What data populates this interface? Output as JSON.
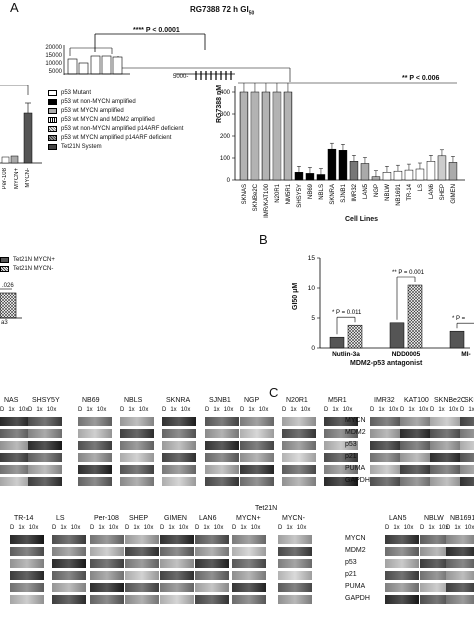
{
  "panels": {
    "a": "A",
    "b": "B",
    "c": "C"
  },
  "chart_top": {
    "title": "RG7388 72 h GI",
    "title_sub": "50",
    "pvalue": "**** P < 0.0001",
    "yticks": [
      "20000",
      "15000",
      "10000",
      "5000"
    ],
    "ylabel_frag": "5000-"
  },
  "legend": {
    "items": [
      {
        "label": "p53 Mutant",
        "swatch": "white"
      },
      {
        "label": "p53 wt non-MYCN amplified",
        "swatch": "black"
      },
      {
        "label": "p53 wt MYCN amplified",
        "swatch": "grey"
      },
      {
        "label": "p53 wt MYCN and MDM2 amplified",
        "swatch": "white"
      },
      {
        "label": "p53 wt non-MYCN amplified p14ARF deficient",
        "swatch": "white"
      },
      {
        "label": "p53 wt MYCN amplified p14ARF deficient",
        "swatch": "grey"
      },
      {
        "label": "Tet21N System",
        "swatch": "dark"
      }
    ]
  },
  "left_chart": {
    "categories": [
      "Per-108",
      "MYCN+",
      "MYCN-"
    ]
  },
  "chart_data": [
    {
      "type": "bar",
      "title": "",
      "ylabel": "RG7388 nM",
      "xlabel": "Cell Lines",
      "ylim": [
        0,
        400
      ],
      "yticks": [
        0,
        100,
        200,
        300,
        400
      ],
      "pvalue": "** P < 0.006",
      "categories": [
        "SKNAS",
        "SKNBe2C",
        "IMR/KAT100",
        "N20R1",
        "NM5R1",
        "SHSY5Y",
        "NB69",
        "NBLS",
        "SKNRA",
        "SJNB1",
        "IMR32",
        "LAN5",
        "NGP",
        "NBLW",
        "NB1691",
        "TR-14",
        "LS",
        "LAN6",
        "SHEP",
        "GIMEN"
      ],
      "values": [
        400,
        400,
        400,
        400,
        400,
        35,
        30,
        25,
        140,
        135,
        85,
        75,
        15,
        35,
        40,
        45,
        50,
        85,
        110,
        80
      ]
    },
    {
      "type": "bar",
      "title": "",
      "ylabel": "GI50 μM",
      "xlabel": "MDM2-p53 antagonist",
      "ylim": [
        0,
        15
      ],
      "yticks": [
        0,
        5,
        10,
        15
      ],
      "categories": [
        "Nutlin-3a",
        "NDD0005",
        "MI-"
      ],
      "series": [
        {
          "name": "Tet21N MYCN+",
          "values": [
            1.8,
            4.2,
            2.8
          ]
        },
        {
          "name": "Tet21N MYCN-",
          "values": [
            3.8,
            10.5,
            0
          ]
        }
      ],
      "pvalues": [
        "* P = 0.011",
        "** P = 0.001",
        "* P ="
      ]
    }
  ],
  "left_b": {
    "legend": [
      "Tet21N MYCN+",
      "Tet21N MYCN-"
    ],
    "pfrag": ".026",
    "xfrag": "a3"
  },
  "blots_top": {
    "cell_lines": [
      "NAS",
      "SHSY5Y",
      "NB69",
      "NBLS",
      "SKNRA",
      "SJNB1",
      "NGP",
      "N20R1",
      "M5R1",
      "IMR32",
      "KAT100",
      "SKNBe2C",
      "SKN"
    ],
    "lanes": [
      "D",
      "1x",
      "10x"
    ],
    "rows": [
      "MYCN",
      "MDM2",
      "p53",
      "p21",
      "PUMA",
      "GAPDH"
    ]
  },
  "blots_bottom": {
    "cell_lines": [
      "TR-14",
      "LS",
      "Per-108",
      "SHEP",
      "GIMEN",
      "LAN6",
      "MYCN+",
      "MYCN-",
      "LAN5",
      "NBLW",
      "NB1691"
    ],
    "tet_label": "Tet21N",
    "lanes": [
      "D",
      "1x",
      "10x"
    ],
    "rows": [
      "MYCN",
      "MDM2",
      "p53",
      "p21",
      "PUMA",
      "GAPDH"
    ]
  }
}
